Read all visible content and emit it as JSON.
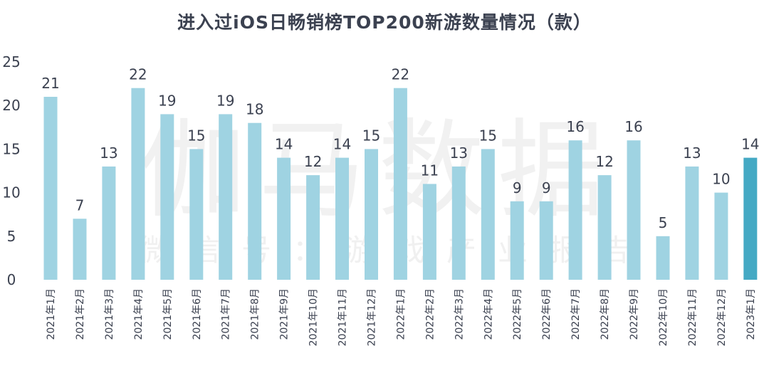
{
  "chart_data": {
    "type": "bar",
    "title": "进入过iOS日畅销榜TOP200新游数量情况（款）",
    "categories": [
      "2021年1月",
      "2021年2月",
      "2021年3月",
      "2021年4月",
      "2021年5月",
      "2021年6月",
      "2021年7月",
      "2021年8月",
      "2021年9月",
      "2021年10月",
      "2021年11月",
      "2021年12月",
      "2022年1月",
      "2022年2月",
      "2022年3月",
      "2022年4月",
      "2022年5月",
      "2022年6月",
      "2022年7月",
      "2022年8月",
      "2022年9月",
      "2022年10月",
      "2022年11月",
      "2022年12月",
      "2023年1月"
    ],
    "values": [
      21,
      7,
      13,
      22,
      19,
      15,
      19,
      18,
      14,
      12,
      14,
      15,
      22,
      11,
      13,
      15,
      9,
      9,
      16,
      12,
      16,
      5,
      13,
      10,
      14
    ],
    "ylim": [
      0,
      25
    ],
    "yticks": [
      0,
      5,
      10,
      15,
      20,
      25
    ],
    "xlabel": "",
    "ylabel": "",
    "grid": false,
    "colors": {
      "bar": "#9fd3e2",
      "highlight_bar": "#44a9c4",
      "text": "#3b4150"
    },
    "highlight_index": 24
  },
  "watermark": {
    "main": "伽马数据",
    "sub": "微信号：游戏产业报告"
  }
}
